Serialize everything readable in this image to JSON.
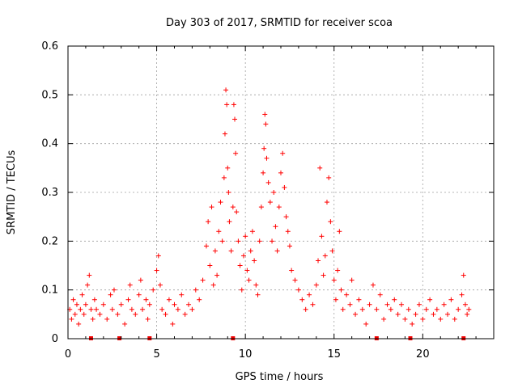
{
  "chart_data": {
    "type": "scatter",
    "title": "Day 303 of 2017, SRMTID for receiver scoa",
    "xlabel": "GPS time / hours",
    "ylabel": "SRMTID / TECUs",
    "xlim": [
      0,
      24
    ],
    "ylim": [
      0,
      0.6
    ],
    "xticks": [
      0,
      5,
      10,
      15,
      20
    ],
    "yticks": [
      0,
      0.1,
      0.2,
      0.3,
      0.4,
      0.5,
      0.6
    ],
    "grid": true,
    "marker_color": "#ff0000",
    "marker_symbol": "+",
    "series": [
      {
        "name": "SRMTID",
        "points": [
          [
            0.1,
            0.06
          ],
          [
            0.2,
            0.04
          ],
          [
            0.3,
            0.08
          ],
          [
            0.4,
            0.05
          ],
          [
            0.5,
            0.07
          ],
          [
            0.6,
            0.03
          ],
          [
            0.7,
            0.06
          ],
          [
            0.8,
            0.09
          ],
          [
            0.9,
            0.05
          ],
          [
            1.0,
            0.07
          ],
          [
            1.1,
            0.11
          ],
          [
            1.2,
            0.13
          ],
          [
            1.3,
            0.06
          ],
          [
            1.4,
            0.04
          ],
          [
            1.5,
            0.08
          ],
          [
            1.6,
            0.06
          ],
          [
            1.8,
            0.05
          ],
          [
            2.0,
            0.07
          ],
          [
            2.2,
            0.04
          ],
          [
            2.4,
            0.09
          ],
          [
            2.5,
            0.06
          ],
          [
            2.6,
            0.1
          ],
          [
            2.8,
            0.05
          ],
          [
            3.0,
            0.07
          ],
          [
            3.2,
            0.03
          ],
          [
            3.4,
            0.08
          ],
          [
            3.5,
            0.11
          ],
          [
            3.6,
            0.06
          ],
          [
            3.8,
            0.05
          ],
          [
            4.0,
            0.09
          ],
          [
            4.1,
            0.12
          ],
          [
            4.2,
            0.06
          ],
          [
            4.4,
            0.08
          ],
          [
            4.5,
            0.04
          ],
          [
            4.6,
            0.07
          ],
          [
            4.8,
            0.1
          ],
          [
            5.0,
            0.14
          ],
          [
            5.1,
            0.17
          ],
          [
            5.2,
            0.11
          ],
          [
            5.3,
            0.06
          ],
          [
            5.5,
            0.05
          ],
          [
            5.7,
            0.08
          ],
          [
            5.9,
            0.03
          ],
          [
            6.0,
            0.07
          ],
          [
            6.2,
            0.06
          ],
          [
            6.4,
            0.09
          ],
          [
            6.6,
            0.05
          ],
          [
            6.8,
            0.07
          ],
          [
            7.0,
            0.06
          ],
          [
            7.2,
            0.1
          ],
          [
            7.4,
            0.08
          ],
          [
            7.6,
            0.12
          ],
          [
            7.8,
            0.19
          ],
          [
            7.9,
            0.24
          ],
          [
            8.0,
            0.15
          ],
          [
            8.1,
            0.27
          ],
          [
            8.2,
            0.11
          ],
          [
            8.3,
            0.18
          ],
          [
            8.4,
            0.13
          ],
          [
            8.5,
            0.22
          ],
          [
            8.6,
            0.28
          ],
          [
            8.7,
            0.2
          ],
          [
            8.8,
            0.33
          ],
          [
            8.85,
            0.42
          ],
          [
            8.9,
            0.51
          ],
          [
            8.95,
            0.48
          ],
          [
            9.0,
            0.35
          ],
          [
            9.05,
            0.3
          ],
          [
            9.1,
            0.24
          ],
          [
            9.2,
            0.18
          ],
          [
            9.3,
            0.27
          ],
          [
            9.35,
            0.48
          ],
          [
            9.4,
            0.45
          ],
          [
            9.45,
            0.38
          ],
          [
            9.5,
            0.26
          ],
          [
            9.6,
            0.2
          ],
          [
            9.7,
            0.15
          ],
          [
            9.8,
            0.1
          ],
          [
            9.9,
            0.17
          ],
          [
            10.0,
            0.21
          ],
          [
            10.1,
            0.14
          ],
          [
            10.2,
            0.12
          ],
          [
            10.3,
            0.18
          ],
          [
            10.4,
            0.22
          ],
          [
            10.5,
            0.16
          ],
          [
            10.6,
            0.11
          ],
          [
            10.7,
            0.09
          ],
          [
            10.8,
            0.2
          ],
          [
            10.9,
            0.27
          ],
          [
            11.0,
            0.34
          ],
          [
            11.05,
            0.39
          ],
          [
            11.1,
            0.46
          ],
          [
            11.15,
            0.44
          ],
          [
            11.2,
            0.37
          ],
          [
            11.3,
            0.32
          ],
          [
            11.4,
            0.28
          ],
          [
            11.5,
            0.2
          ],
          [
            11.6,
            0.3
          ],
          [
            11.7,
            0.23
          ],
          [
            11.8,
            0.18
          ],
          [
            11.9,
            0.27
          ],
          [
            12.0,
            0.34
          ],
          [
            12.1,
            0.38
          ],
          [
            12.2,
            0.31
          ],
          [
            12.3,
            0.25
          ],
          [
            12.4,
            0.22
          ],
          [
            12.5,
            0.19
          ],
          [
            12.6,
            0.14
          ],
          [
            12.8,
            0.12
          ],
          [
            13.0,
            0.1
          ],
          [
            13.2,
            0.08
          ],
          [
            13.4,
            0.06
          ],
          [
            13.6,
            0.09
          ],
          [
            13.8,
            0.07
          ],
          [
            14.0,
            0.11
          ],
          [
            14.1,
            0.16
          ],
          [
            14.2,
            0.35
          ],
          [
            14.3,
            0.21
          ],
          [
            14.4,
            0.13
          ],
          [
            14.5,
            0.17
          ],
          [
            14.6,
            0.28
          ],
          [
            14.7,
            0.33
          ],
          [
            14.8,
            0.24
          ],
          [
            14.9,
            0.18
          ],
          [
            15.0,
            0.12
          ],
          [
            15.1,
            0.08
          ],
          [
            15.2,
            0.14
          ],
          [
            15.3,
            0.22
          ],
          [
            15.4,
            0.1
          ],
          [
            15.5,
            0.06
          ],
          [
            15.7,
            0.09
          ],
          [
            15.9,
            0.07
          ],
          [
            16.0,
            0.12
          ],
          [
            16.2,
            0.05
          ],
          [
            16.4,
            0.08
          ],
          [
            16.6,
            0.06
          ],
          [
            16.8,
            0.03
          ],
          [
            17.0,
            0.07
          ],
          [
            17.2,
            0.11
          ],
          [
            17.4,
            0.06
          ],
          [
            17.6,
            0.09
          ],
          [
            17.8,
            0.04
          ],
          [
            18.0,
            0.07
          ],
          [
            18.2,
            0.06
          ],
          [
            18.4,
            0.08
          ],
          [
            18.6,
            0.05
          ],
          [
            18.8,
            0.07
          ],
          [
            19.0,
            0.04
          ],
          [
            19.2,
            0.06
          ],
          [
            19.4,
            0.03
          ],
          [
            19.6,
            0.05
          ],
          [
            19.8,
            0.07
          ],
          [
            20.0,
            0.04
          ],
          [
            20.2,
            0.06
          ],
          [
            20.4,
            0.08
          ],
          [
            20.6,
            0.05
          ],
          [
            20.8,
            0.06
          ],
          [
            21.0,
            0.04
          ],
          [
            21.2,
            0.07
          ],
          [
            21.4,
            0.05
          ],
          [
            21.6,
            0.08
          ],
          [
            21.8,
            0.04
          ],
          [
            22.0,
            0.06
          ],
          [
            22.2,
            0.09
          ],
          [
            22.3,
            0.13
          ],
          [
            22.4,
            0.07
          ],
          [
            22.5,
            0.05
          ],
          [
            22.6,
            0.06
          ]
        ]
      }
    ],
    "markers": [
      {
        "x": 1.3,
        "y": 0
      },
      {
        "x": 2.9,
        "y": 0
      },
      {
        "x": 4.6,
        "y": 0
      },
      {
        "x": 9.3,
        "y": 0
      },
      {
        "x": 17.4,
        "y": 0
      },
      {
        "x": 19.3,
        "y": 0
      },
      {
        "x": 22.3,
        "y": 0
      }
    ]
  }
}
